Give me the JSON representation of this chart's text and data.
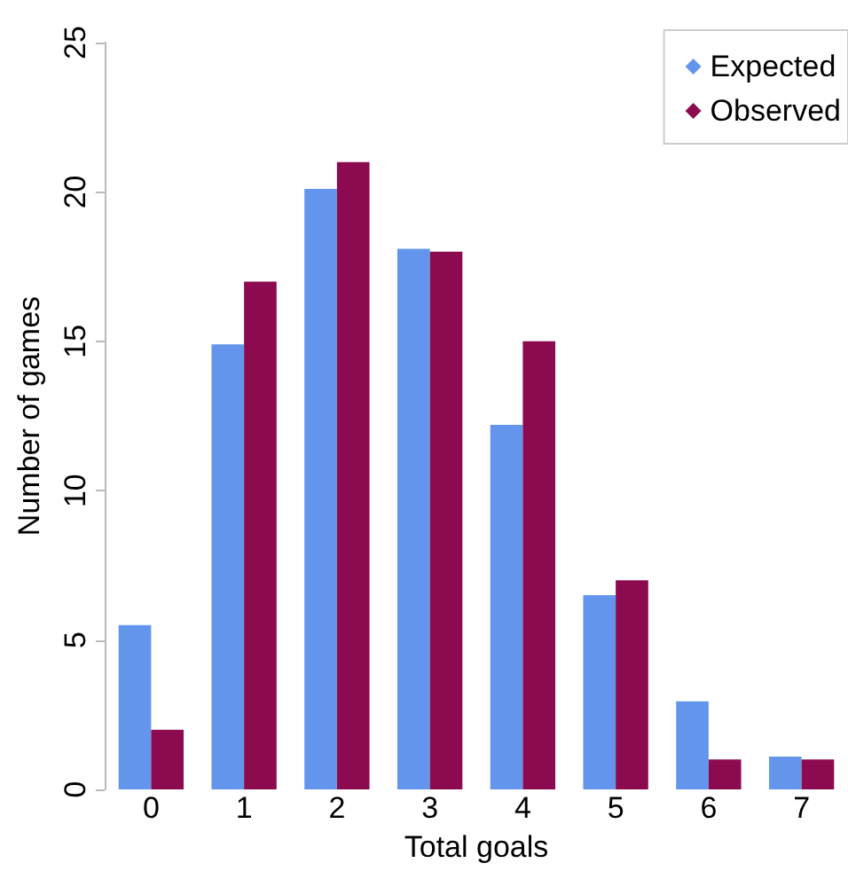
{
  "chart_data": {
    "type": "bar",
    "xlabel": "Total goals",
    "ylabel": "Number of games",
    "categories": [
      "0",
      "1",
      "2",
      "3",
      "4",
      "5",
      "6",
      "7"
    ],
    "series": [
      {
        "name": "Expected",
        "color": "#6495ed",
        "values": [
          5.5,
          14.9,
          20.1,
          18.1,
          12.2,
          6.5,
          2.95,
          1.1
        ]
      },
      {
        "name": "Observed",
        "color": "#8b0a50",
        "values": [
          2,
          17,
          21,
          18,
          15,
          7,
          1,
          1
        ]
      }
    ],
    "ylim": [
      0,
      25
    ],
    "yticks": [
      0,
      5,
      10,
      15,
      20,
      25
    ],
    "grid": false,
    "legend": "top right",
    "marker": "diamond"
  }
}
